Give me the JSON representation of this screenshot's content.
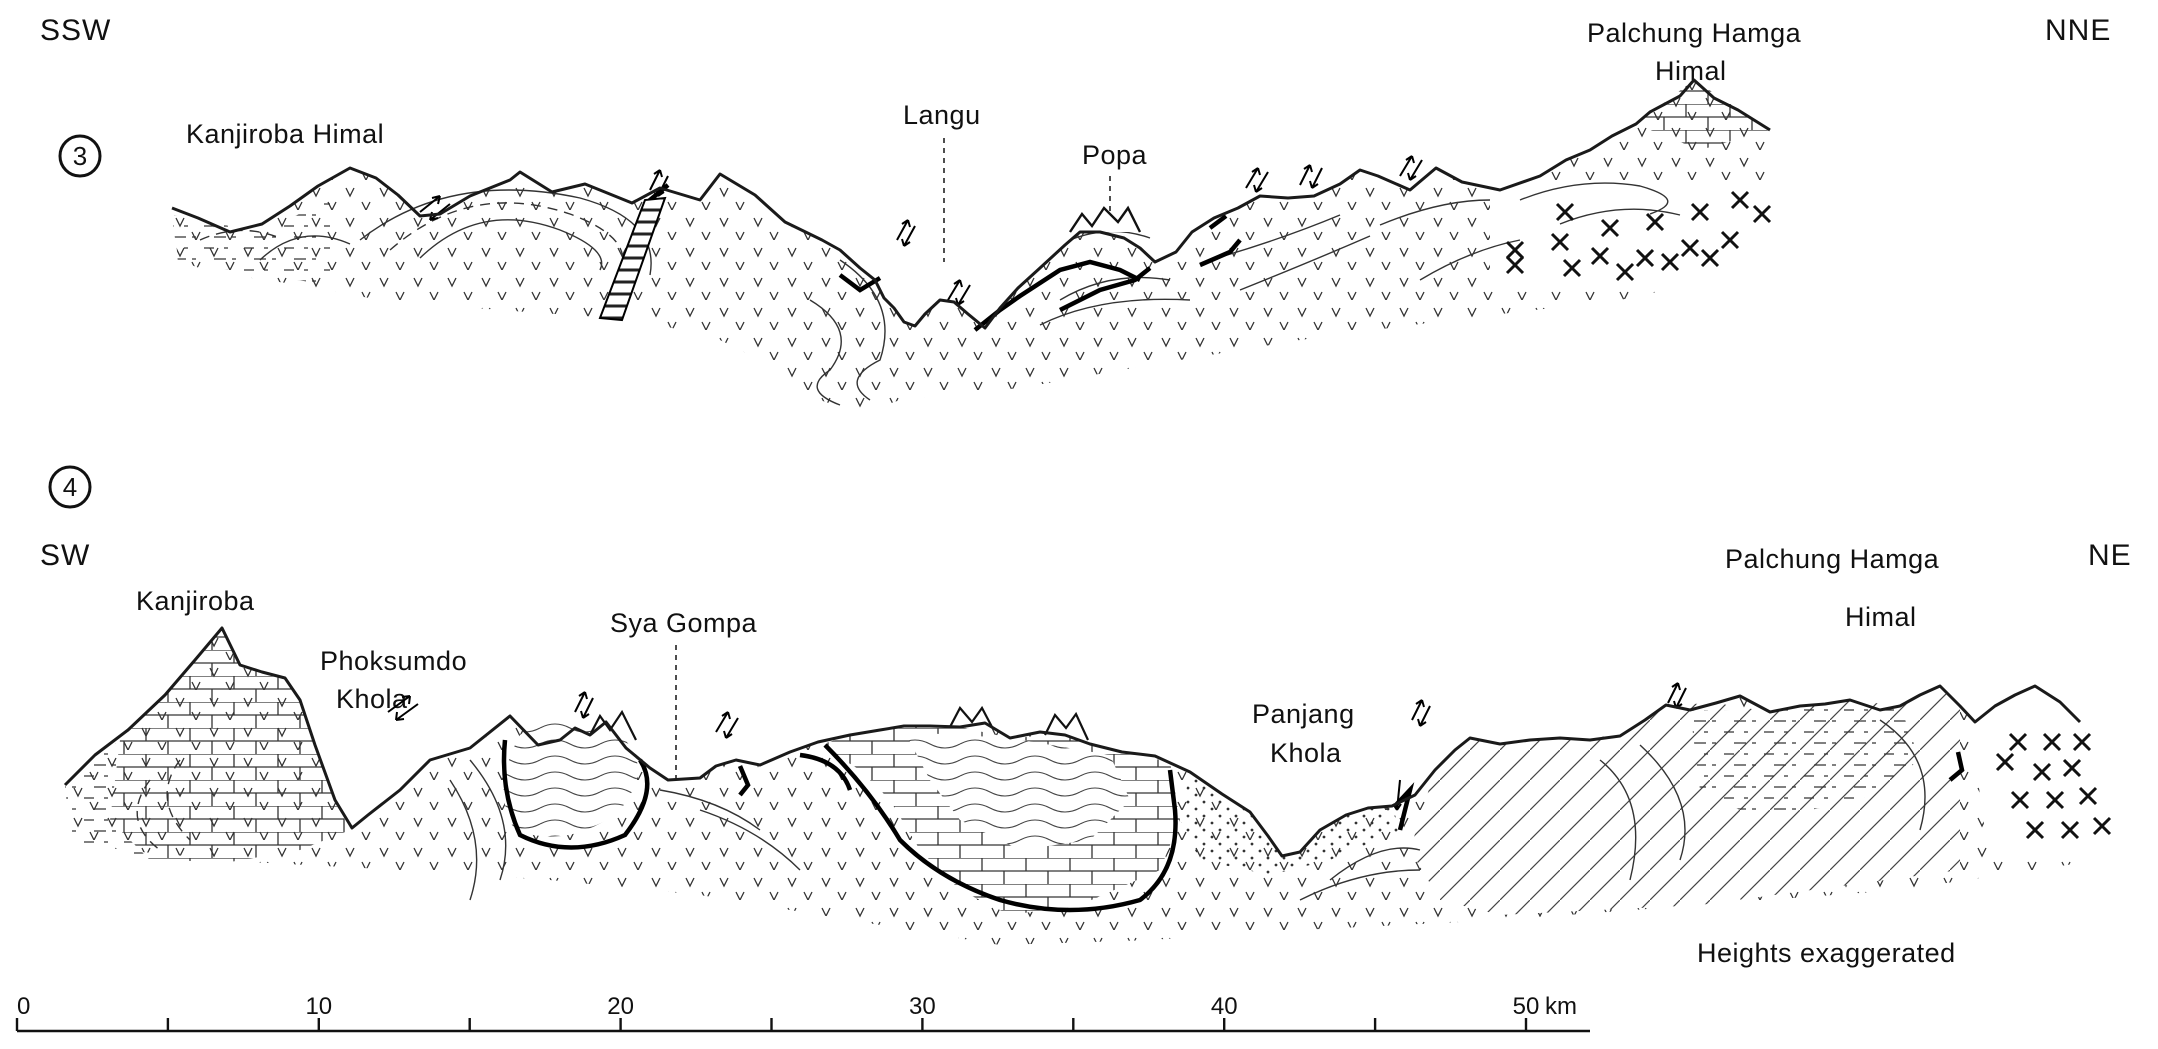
{
  "section3": {
    "number": "3",
    "left_direction": "SSW",
    "right_direction": "NNE",
    "labels": {
      "kanjiroba": "Kanjiroba Himal",
      "langu": "Langu",
      "popa": "Popa",
      "palchung_line1": "Palchung Hamga",
      "palchung_line2": "Himal"
    }
  },
  "section4": {
    "number": "4",
    "left_direction": "SW",
    "right_direction": "NE",
    "labels": {
      "kanjiroba": "Kanjiroba",
      "phoksumdo_line1": "Phoksumdo",
      "phoksumdo_line2": "Khola",
      "sya_gompa": "Sya Gompa",
      "panjang_line1": "Panjang",
      "panjang_line2": "Khola",
      "palchung_line1": "Palchung Hamga",
      "palchung_line2": "Himal"
    },
    "note": "Heights exaggerated"
  },
  "scale_bar": {
    "ticks": [
      "0",
      "10",
      "20",
      "30",
      "40",
      "50"
    ],
    "unit": "km"
  }
}
